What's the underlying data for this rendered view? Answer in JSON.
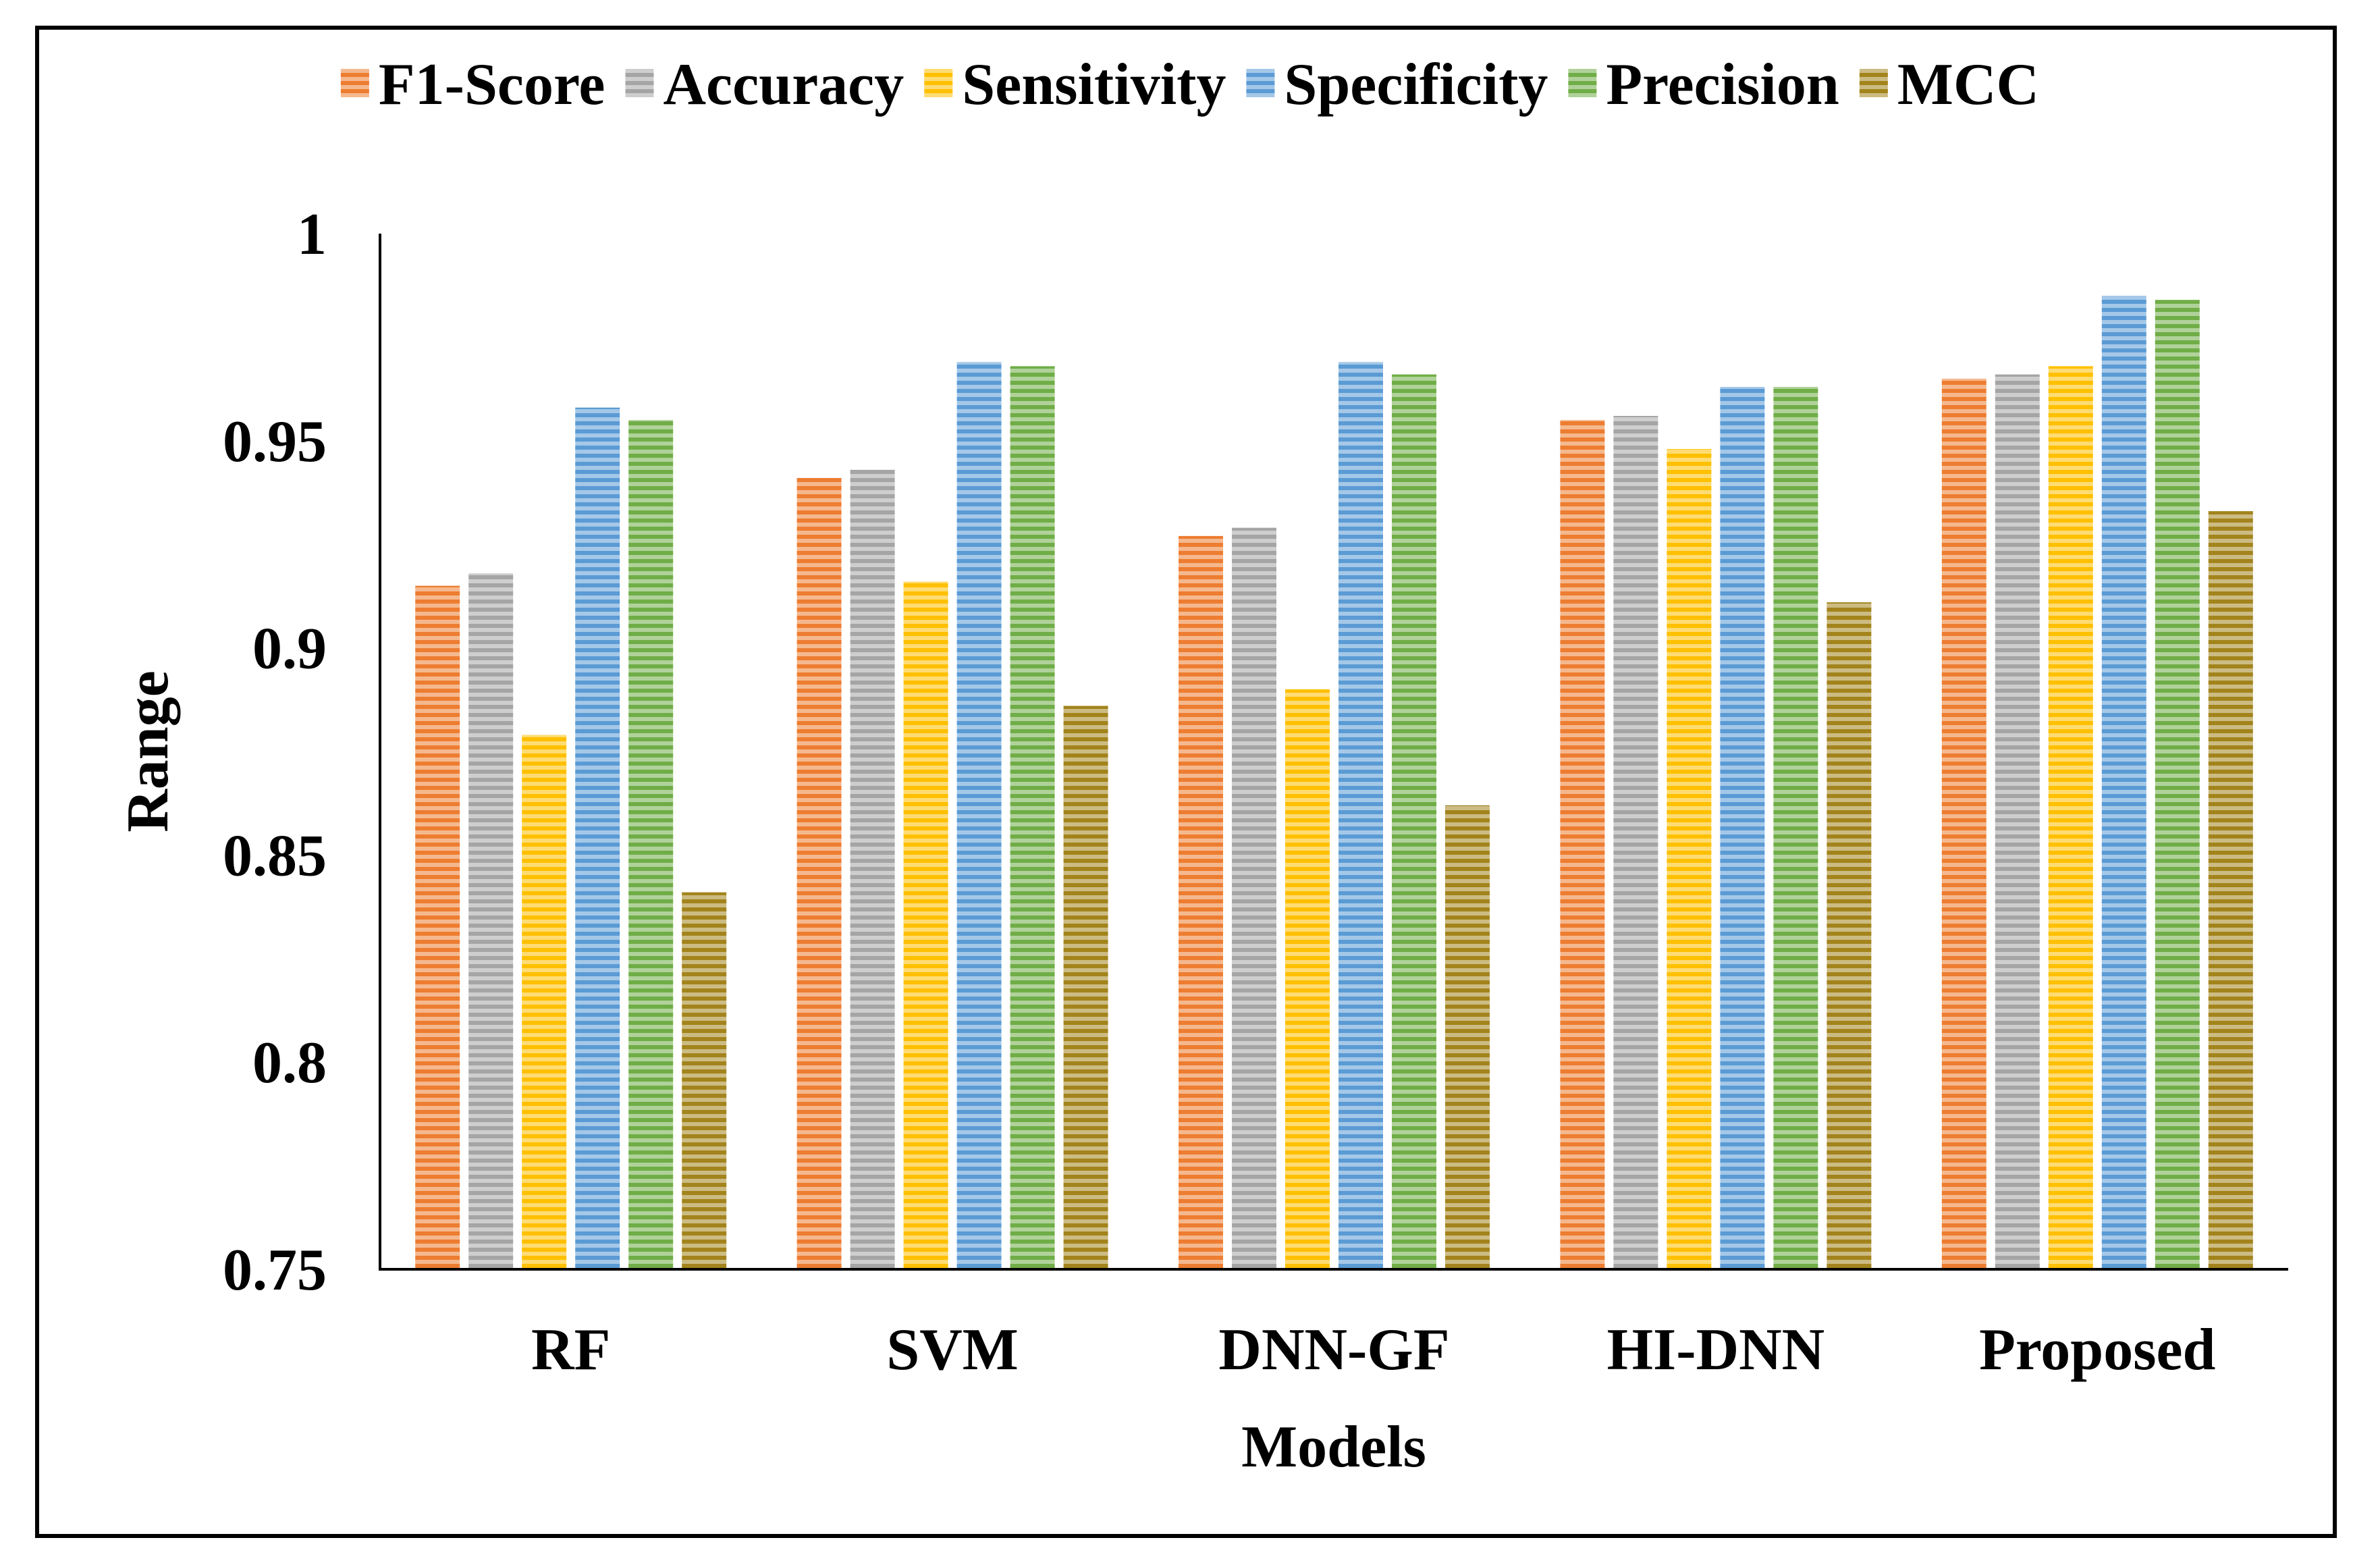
{
  "chart_data": {
    "type": "bar",
    "title": "",
    "xlabel": "Models",
    "ylabel": "Range",
    "ylim": [
      0.75,
      1.0
    ],
    "y_ticks": [
      0.75,
      0.8,
      0.85,
      0.9,
      0.95,
      1
    ],
    "y_tick_labels": [
      "0.75",
      "0.8",
      "0.85",
      "0.9",
      "0.95",
      "1"
    ],
    "grid": false,
    "legend_position": "top",
    "categories": [
      "RF",
      "SVM",
      "DNN-GF",
      "HI-DNN",
      "Proposed"
    ],
    "series": [
      {
        "name": "F1-Score",
        "color": "#ED7D31",
        "values": [
          0.915,
          0.941,
          0.927,
          0.955,
          0.965
        ]
      },
      {
        "name": "Accuracy",
        "color": "#A5A5A5",
        "values": [
          0.918,
          0.943,
          0.929,
          0.956,
          0.966
        ]
      },
      {
        "name": "Sensitivity",
        "color": "#FFC000",
        "values": [
          0.879,
          0.916,
          0.89,
          0.948,
          0.968
        ]
      },
      {
        "name": "Specificity",
        "color": "#5B9BD5",
        "values": [
          0.958,
          0.969,
          0.969,
          0.963,
          0.985
        ]
      },
      {
        "name": "Precision",
        "color": "#70AD47",
        "values": [
          0.955,
          0.968,
          0.966,
          0.963,
          0.984
        ]
      },
      {
        "name": "MCC",
        "color": "#A3841C",
        "values": [
          0.841,
          0.886,
          0.862,
          0.911,
          0.933
        ]
      }
    ]
  }
}
